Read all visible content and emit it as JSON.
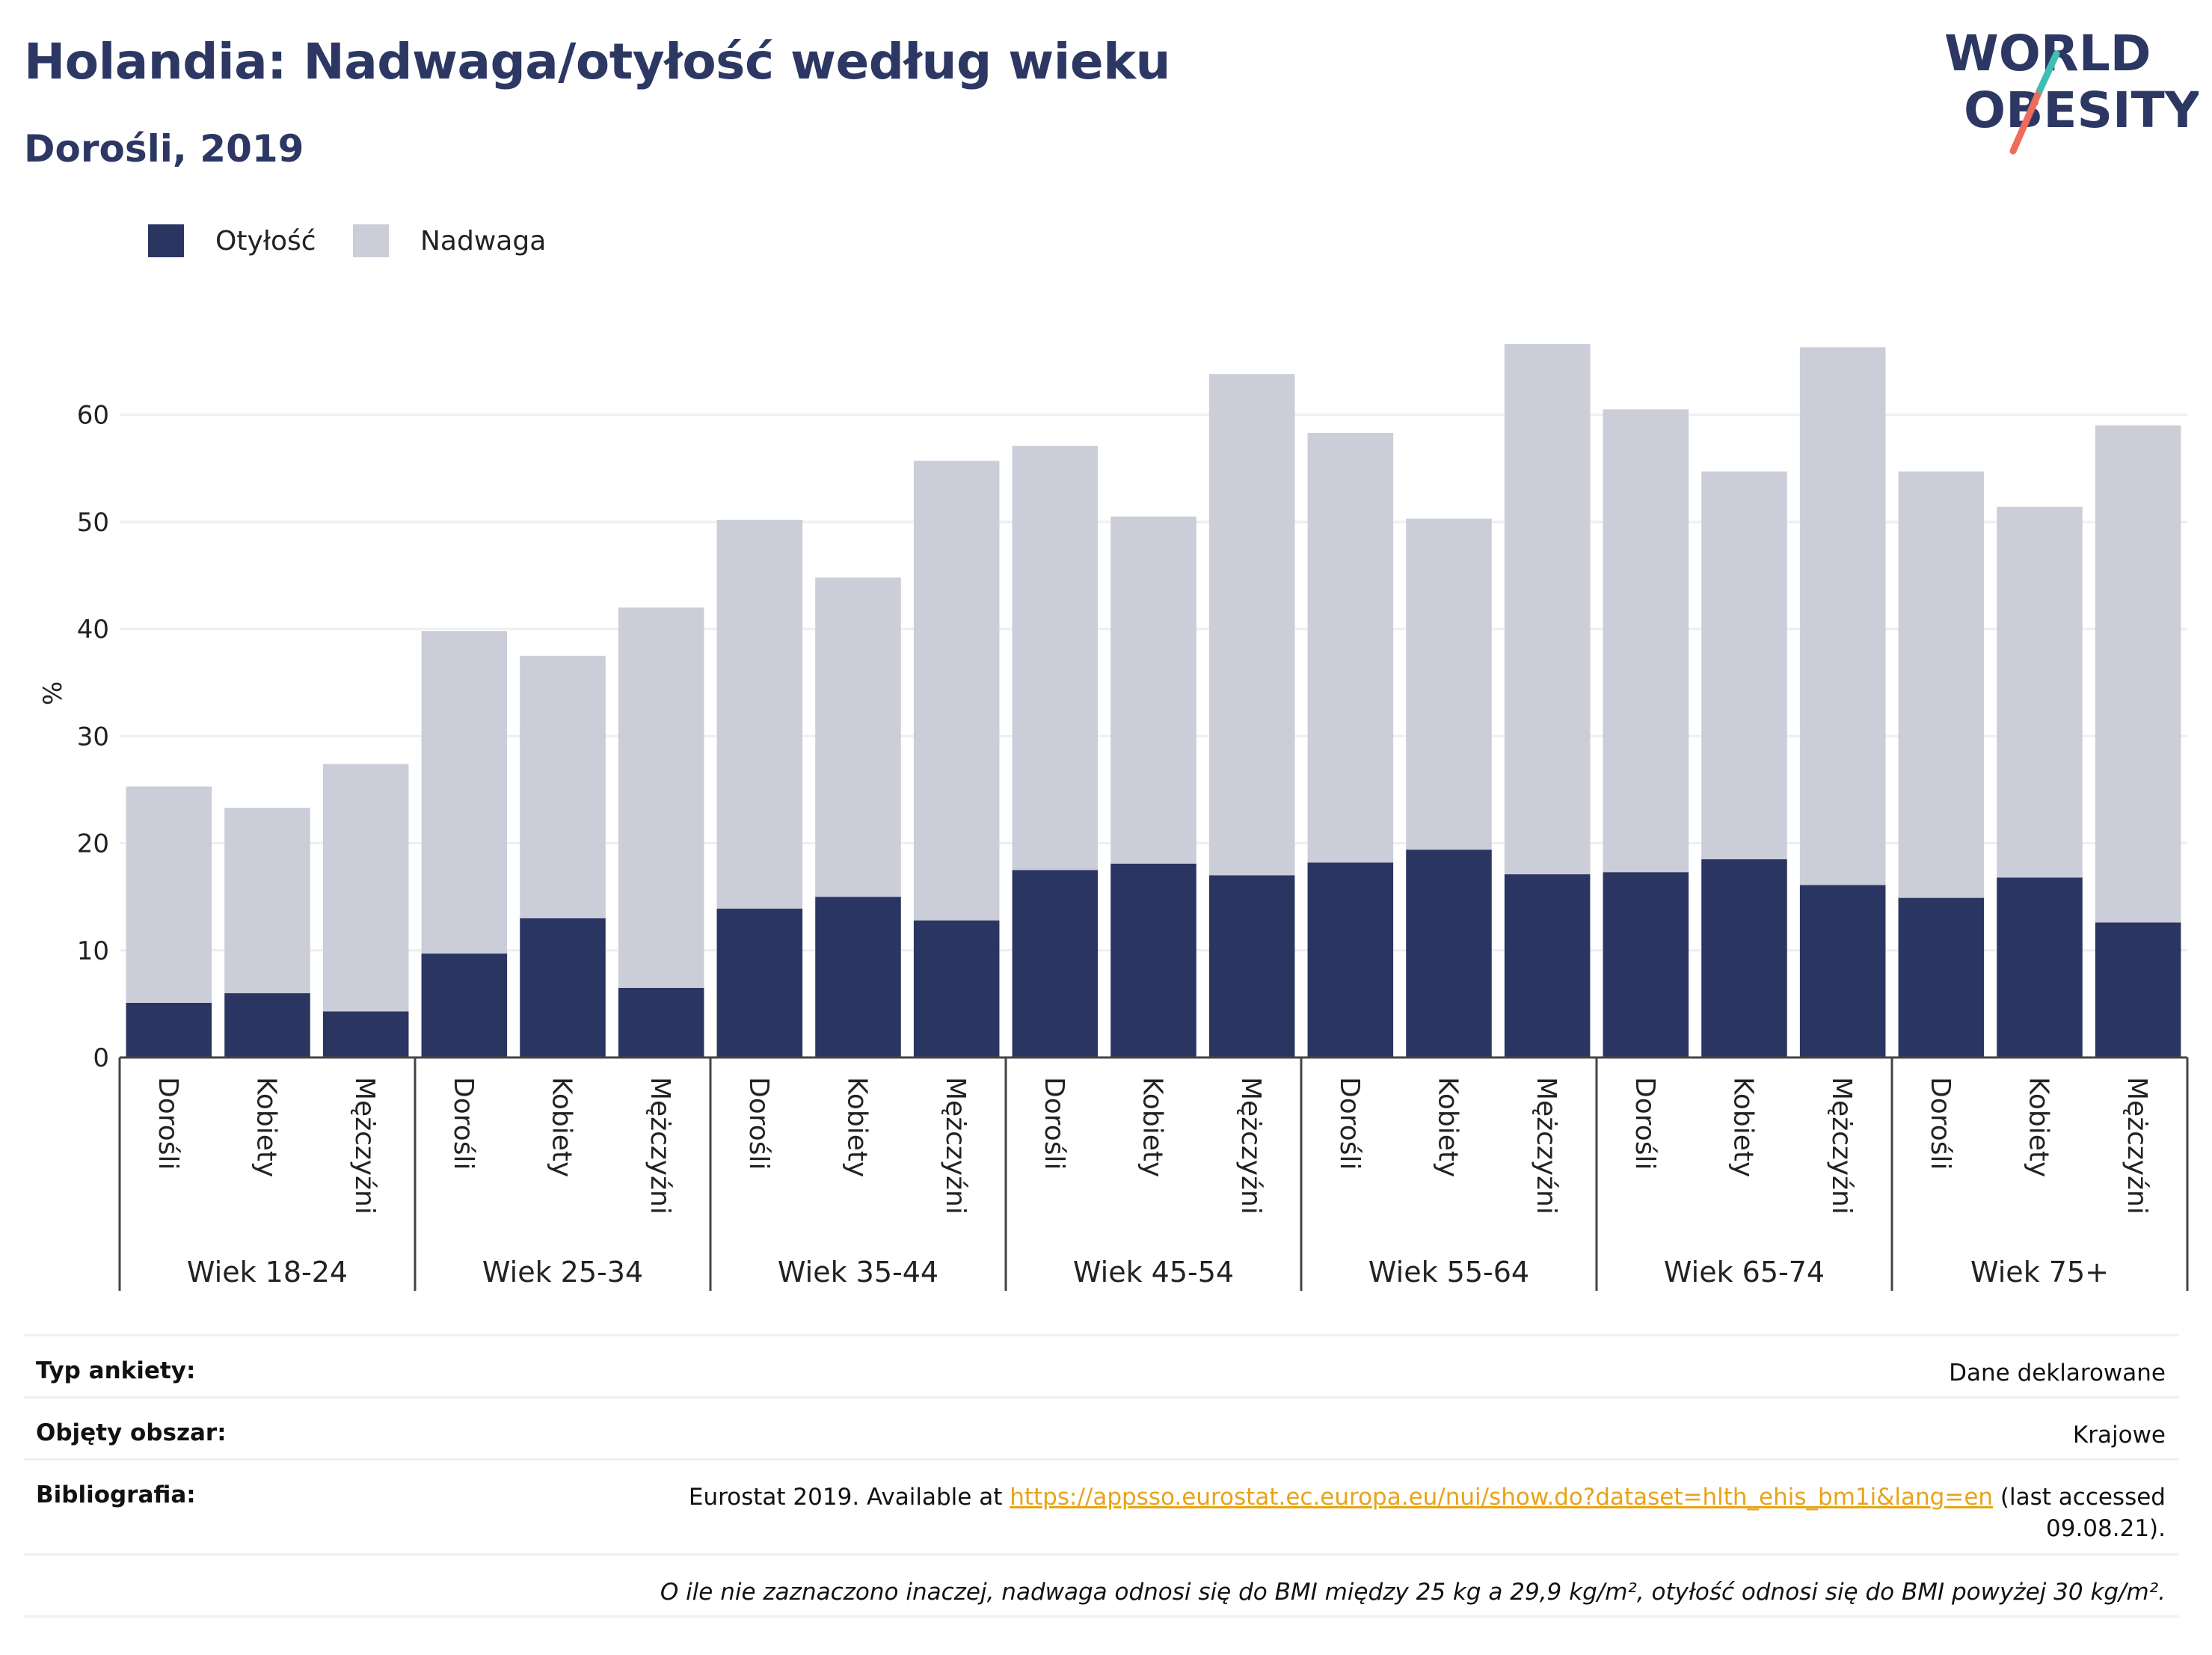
{
  "header": {
    "title": "Holandia: Nadwaga/otyłość według wieku",
    "subtitle": "Dorośli, 2019"
  },
  "logo": {
    "line1": "WORLD",
    "line2": "OBESITY",
    "accent_teal": "#3fbfb3",
    "accent_coral": "#ef6b5b"
  },
  "colors": {
    "obesity": "#2b3561",
    "overweight": "#cbcdd8",
    "grid": "#eeeef3",
    "title": "#2d3763"
  },
  "legend": [
    {
      "label": "Otyłość",
      "color": "#2b3561"
    },
    {
      "label": "Nadwaga",
      "color": "#cbcdd8"
    }
  ],
  "chart_data": {
    "type": "bar",
    "stacked": true,
    "ylabel": "%",
    "ylim": [
      0,
      68
    ],
    "yticks": [
      0,
      10,
      20,
      30,
      40,
      50,
      60
    ],
    "grid": true,
    "legend_position": "top-left",
    "groups": [
      "Wiek 18-24",
      "Wiek 25-34",
      "Wiek 35-44",
      "Wiek 45-54",
      "Wiek 55-64",
      "Wiek 65-74",
      "Wiek 75+"
    ],
    "subcategories": [
      "Dorośli",
      "Kobiety",
      "Mężczyźni"
    ],
    "series": [
      {
        "name": "Otyłość",
        "values": [
          5.1,
          6.0,
          4.3,
          9.7,
          13.0,
          6.5,
          13.9,
          15.0,
          12.8,
          17.5,
          18.1,
          17.0,
          18.2,
          19.4,
          17.1,
          17.3,
          18.5,
          16.1,
          14.9,
          16.8,
          12.6
        ]
      },
      {
        "name": "Nadwaga",
        "values": [
          20.2,
          17.3,
          23.1,
          30.1,
          24.5,
          35.5,
          36.3,
          29.8,
          42.9,
          39.6,
          32.4,
          46.8,
          40.1,
          30.9,
          49.5,
          43.2,
          36.2,
          50.2,
          39.8,
          34.6,
          46.4
        ]
      }
    ]
  },
  "info": {
    "survey_label": "Typ ankiety:",
    "survey_value": "Dane deklarowane",
    "area_label": "Objęty obszar:",
    "area_value": "Krajowe",
    "biblio_label": "Bibliografia:",
    "biblio_prefix": "Eurostat 2019. Available at ",
    "biblio_link": "https://appsso.eurostat.ec.europa.eu/nui/show.do?dataset=hlth_ehis_bm1i&lang=en",
    "biblio_suffix": " (last accessed",
    "biblio_date": "09.08.21).",
    "note": "O ile nie zaznaczono inaczej, nadwaga odnosi się do BMI między 25 kg a 29,9 kg/m², otyłość odnosi się do BMI powyżej 30 kg/m²."
  }
}
